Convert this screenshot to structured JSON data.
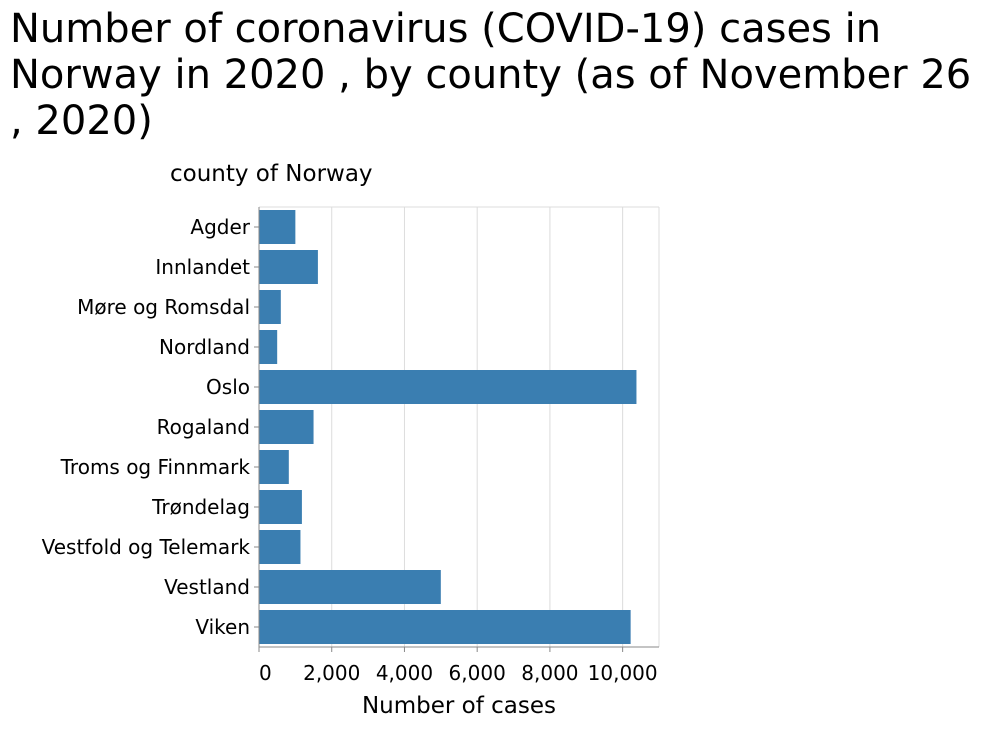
{
  "chart_data": {
    "type": "bar",
    "orientation": "horizontal",
    "title": "Number of coronavirus (COVID-19) cases in Norway in 2020 , by county (as of November 26 , 2020)",
    "xlabel": "Number of cases",
    "ylabel": "county of Norway",
    "categories": [
      "Agder",
      "Innlandet",
      "Møre og Romsdal",
      "Nordland",
      "Oslo",
      "Rogaland",
      "Troms og Finnmark",
      "Trøndelag",
      "Vestfold og Telemark",
      "Vestland",
      "Viken"
    ],
    "values": [
      1000,
      1620,
      600,
      500,
      10380,
      1500,
      820,
      1180,
      1140,
      5000,
      10220
    ],
    "xlim": [
      0,
      11000
    ],
    "xticks": [
      0,
      2000,
      4000,
      6000,
      8000,
      10000
    ],
    "xtick_labels": [
      "0",
      "2,000",
      "4,000",
      "6,000",
      "8,000",
      "10,000"
    ],
    "grid": true,
    "bar_color": "#3a7eb1"
  }
}
